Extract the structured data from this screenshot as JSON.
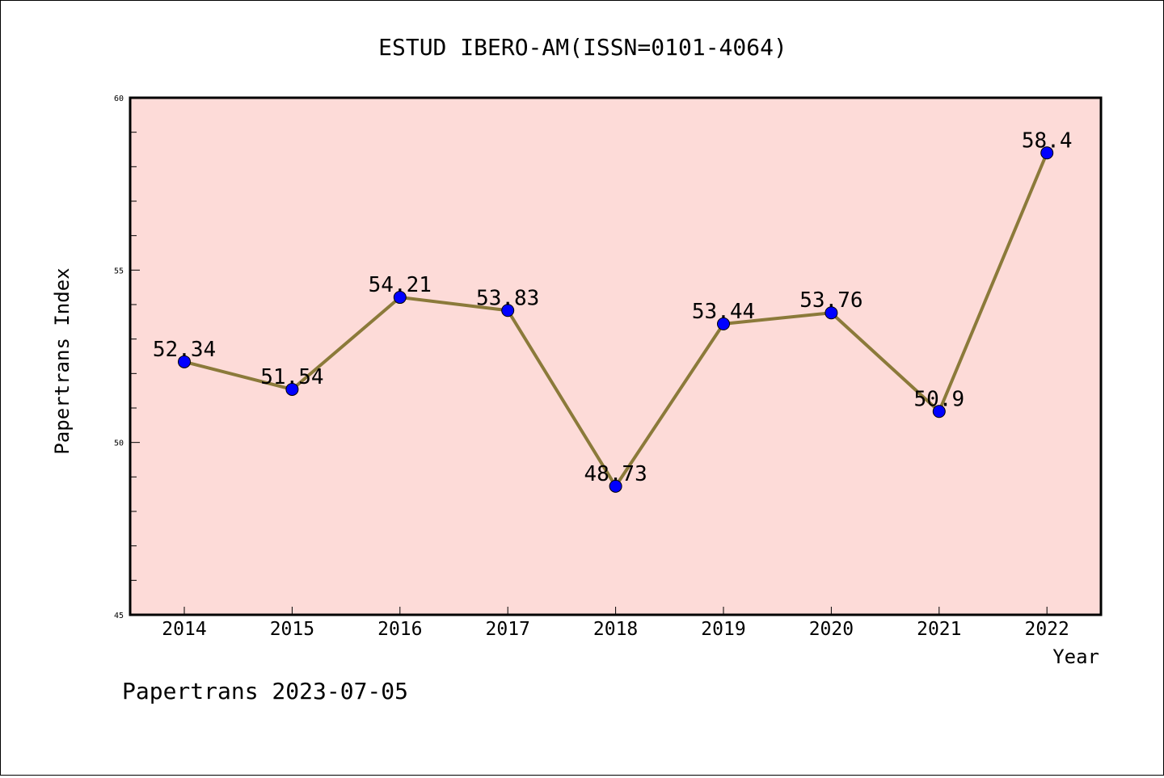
{
  "chart_data": {
    "type": "line",
    "title": "ESTUD IBERO-AM(ISSN=0101-4064)",
    "xlabel": "Year",
    "ylabel": "Papertrans Index",
    "footer": "Papertrans 2023-07-05",
    "x": [
      "2014",
      "2015",
      "2016",
      "2017",
      "2018",
      "2019",
      "2020",
      "2021",
      "2022"
    ],
    "series": [
      {
        "values": [
          52.34,
          51.54,
          54.21,
          53.83,
          48.73,
          53.44,
          53.76,
          50.9,
          58.4
        ]
      }
    ],
    "data_labels": [
      "52.34",
      "51.54",
      "54.21",
      "53.83",
      "48.73",
      "53.44",
      "53.76",
      "50.9",
      "58.4"
    ],
    "ylim": [
      45,
      60
    ],
    "yticks": [
      "45",
      "50",
      "55",
      "60"
    ],
    "y_minor_step": 1,
    "grid": false,
    "colors": {
      "plot_background": "#fddbd8",
      "line": "#8b7a3a",
      "marker": "#0000ff"
    }
  }
}
